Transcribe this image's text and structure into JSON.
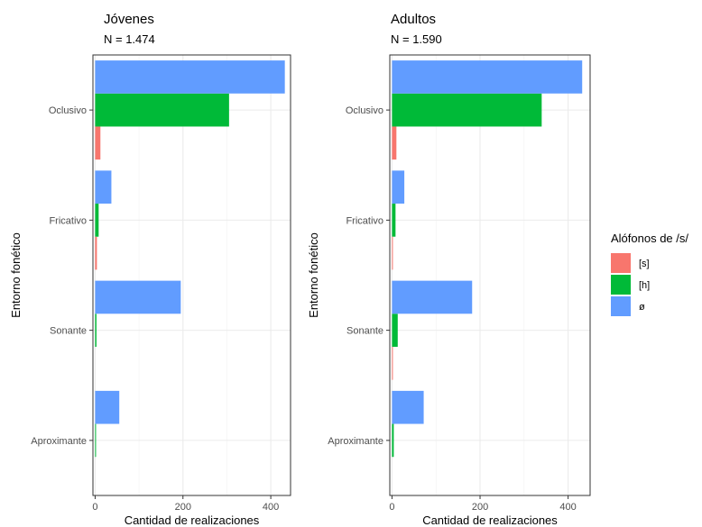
{
  "chart_data": [
    {
      "type": "bar",
      "orientation": "horizontal",
      "title": "Jóvenes",
      "subtitle": "N = 1.474",
      "xlabel": "Cantidad de realizaciones",
      "ylabel": "Entorno fonético",
      "xlim": [
        -5,
        445
      ],
      "xticks": [
        0,
        200,
        400
      ],
      "grid": true,
      "categories": [
        "Aproximante",
        "Sonante",
        "Fricativo",
        "Oclusivo"
      ],
      "series": [
        {
          "name": "[s]",
          "values": [
            0,
            0,
            4,
            12
          ]
        },
        {
          "name": "[h]",
          "values": [
            2,
            3,
            8,
            305
          ]
        },
        {
          "name": "ø",
          "values": [
            55,
            195,
            37,
            432
          ]
        }
      ]
    },
    {
      "type": "bar",
      "orientation": "horizontal",
      "title": "Adultos",
      "subtitle": "N = 1.590",
      "xlabel": "Cantidad de realizaciones",
      "ylabel": "Entorno fonético",
      "xlim": [
        -5,
        450
      ],
      "xticks": [
        0,
        200,
        400
      ],
      "grid": true,
      "categories": [
        "Aproximante",
        "Sonante",
        "Fricativo",
        "Oclusivo"
      ],
      "series": [
        {
          "name": "[s]",
          "values": [
            0,
            2,
            2,
            10
          ]
        },
        {
          "name": "[h]",
          "values": [
            4,
            13,
            8,
            340
          ]
        },
        {
          "name": "ø",
          "values": [
            72,
            182,
            28,
            432
          ]
        }
      ]
    }
  ],
  "legend": {
    "title": "Alófonos de /s/",
    "position": "right",
    "items": [
      {
        "label": "[s]",
        "color": "#F8766D"
      },
      {
        "label": "[h]",
        "color": "#00BA38"
      },
      {
        "label": "ø",
        "color": "#619CFF"
      }
    ]
  }
}
